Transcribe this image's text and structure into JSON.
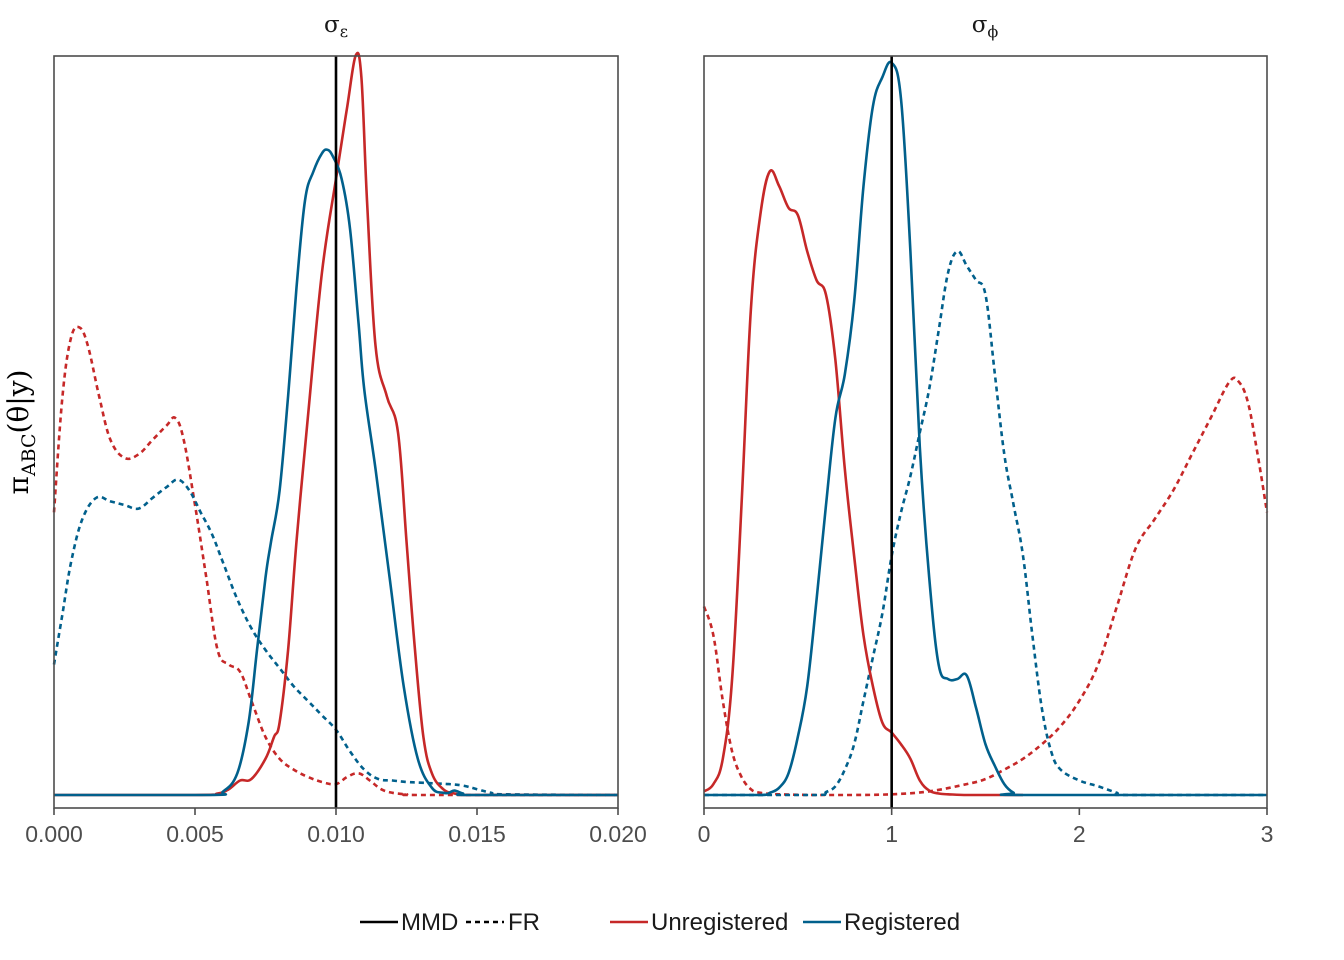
{
  "figure": {
    "ylabel_main": "π",
    "ylabel_sub": "ABC",
    "ylabel_rest": "(θ|y)"
  },
  "legend": {
    "line_types": [
      {
        "label": "MMD",
        "dash": "solid"
      },
      {
        "label": "FR",
        "dash": "dashed"
      }
    ],
    "colors": [
      {
        "label": "Unregistered",
        "color": "#c62828"
      },
      {
        "label": "Registered",
        "color": "#01608c"
      }
    ]
  },
  "colors": {
    "unregistered": "#c62828",
    "registered": "#01608c",
    "true_value": "#000000",
    "frame": "#4d4d4d"
  },
  "chart_data": [
    {
      "type": "line",
      "title_symbol": "σ",
      "title_subscript": "ε",
      "xlabel": "",
      "ylabel": "π_ABC(θ|y)",
      "xlim": [
        0,
        0.02
      ],
      "ylim": [
        0,
        1.02
      ],
      "xticks": [
        0,
        0.005,
        0.01,
        0.015,
        0.02
      ],
      "xtick_labels": [
        "0.000",
        "0.005",
        "0.010",
        "0.015",
        "0.020"
      ],
      "true_value": 0.01,
      "grid": false,
      "series": [
        {
          "name": "Unregistered MMD",
          "color_key": "unregistered",
          "dash": "solid",
          "x": [
            0,
            0.005,
            0.0058,
            0.0062,
            0.0066,
            0.007,
            0.0075,
            0.0078,
            0.008,
            0.0083,
            0.0086,
            0.009,
            0.0095,
            0.01,
            0.0104,
            0.0107,
            0.0109,
            0.0111,
            0.0114,
            0.0118,
            0.0122,
            0.0125,
            0.0128,
            0.0131,
            0.0134,
            0.0138,
            0.0142,
            0.0146,
            0.015,
            0.02
          ],
          "y": [
            0,
            0,
            0.002,
            0.008,
            0.02,
            0.022,
            0.05,
            0.08,
            0.1,
            0.2,
            0.35,
            0.52,
            0.72,
            0.85,
            0.95,
            1.02,
            0.99,
            0.82,
            0.62,
            0.55,
            0.5,
            0.35,
            0.2,
            0.08,
            0.03,
            0.008,
            0.002,
            0,
            0,
            0
          ]
        },
        {
          "name": "Registered MMD",
          "color_key": "registered",
          "dash": "solid",
          "x": [
            0,
            0.0055,
            0.006,
            0.0065,
            0.0069,
            0.0072,
            0.0075,
            0.0077,
            0.008,
            0.0083,
            0.0086,
            0.0089,
            0.0092,
            0.0095,
            0.0097,
            0.0099,
            0.0102,
            0.0105,
            0.0108,
            0.011,
            0.0114,
            0.0119,
            0.0124,
            0.0129,
            0.0134,
            0.0138,
            0.014,
            0.0142,
            0.0145,
            0.0148,
            0.02
          ],
          "y": [
            0,
            0,
            0.005,
            0.03,
            0.1,
            0.2,
            0.3,
            0.35,
            0.42,
            0.55,
            0.7,
            0.82,
            0.86,
            0.885,
            0.89,
            0.88,
            0.85,
            0.78,
            0.65,
            0.56,
            0.45,
            0.3,
            0.15,
            0.05,
            0.01,
            0.003,
            0.003,
            0.006,
            0.002,
            0,
            0
          ]
        },
        {
          "name": "Unregistered FR",
          "color_key": "unregistered",
          "dash": "dashed",
          "x": [
            0,
            0.0003,
            0.0006,
            0.0009,
            0.0012,
            0.0016,
            0.002,
            0.0025,
            0.003,
            0.0035,
            0.004,
            0.0043,
            0.0046,
            0.005,
            0.0054,
            0.0058,
            0.0062,
            0.0066,
            0.007,
            0.0075,
            0.008,
            0.0085,
            0.009,
            0.0095,
            0.01,
            0.0104,
            0.0108,
            0.0112,
            0.0116,
            0.012,
            0.0125,
            0.013,
            0.02
          ],
          "y": [
            0.39,
            0.55,
            0.63,
            0.645,
            0.62,
            0.55,
            0.49,
            0.465,
            0.47,
            0.49,
            0.51,
            0.52,
            0.49,
            0.4,
            0.3,
            0.2,
            0.18,
            0.17,
            0.13,
            0.08,
            0.05,
            0.035,
            0.025,
            0.018,
            0.015,
            0.025,
            0.03,
            0.02,
            0.008,
            0.003,
            0.001,
            0,
            0
          ]
        },
        {
          "name": "Registered FR",
          "color_key": "registered",
          "dash": "dashed",
          "x": [
            0,
            0.0003,
            0.0006,
            0.001,
            0.0015,
            0.002,
            0.0025,
            0.003,
            0.0035,
            0.004,
            0.0044,
            0.0048,
            0.0052,
            0.0056,
            0.006,
            0.0065,
            0.007,
            0.0075,
            0.008,
            0.0085,
            0.009,
            0.0095,
            0.01,
            0.0105,
            0.011,
            0.0115,
            0.012,
            0.0125,
            0.013,
            0.0135,
            0.014,
            0.0145,
            0.015,
            0.0155,
            0.016,
            0.02
          ],
          "y": [
            0.18,
            0.25,
            0.32,
            0.38,
            0.41,
            0.405,
            0.4,
            0.395,
            0.41,
            0.425,
            0.435,
            0.42,
            0.39,
            0.36,
            0.32,
            0.27,
            0.23,
            0.2,
            0.175,
            0.15,
            0.13,
            0.11,
            0.09,
            0.06,
            0.035,
            0.022,
            0.02,
            0.018,
            0.017,
            0.016,
            0.015,
            0.013,
            0.008,
            0.003,
            0.001,
            0
          ]
        }
      ]
    },
    {
      "type": "line",
      "title_symbol": "σ",
      "title_subscript": "ϕ",
      "xlabel": "",
      "ylabel": "",
      "xlim": [
        0,
        3
      ],
      "ylim": [
        0,
        1.02
      ],
      "xticks": [
        0,
        1,
        2,
        3
      ],
      "xtick_labels": [
        "0",
        "1",
        "2",
        "3"
      ],
      "true_value": 1,
      "grid": false,
      "series": [
        {
          "name": "Unregistered MMD",
          "color_key": "unregistered",
          "dash": "solid",
          "x": [
            0,
            0.05,
            0.1,
            0.15,
            0.2,
            0.25,
            0.3,
            0.35,
            0.4,
            0.45,
            0.5,
            0.55,
            0.6,
            0.65,
            0.7,
            0.75,
            0.8,
            0.85,
            0.9,
            0.95,
            1,
            1.05,
            1.1,
            1.15,
            1.2,
            1.25,
            1.3,
            1.4,
            1.5,
            1.7
          ],
          "y": [
            0.005,
            0.015,
            0.05,
            0.16,
            0.4,
            0.67,
            0.8,
            0.86,
            0.84,
            0.81,
            0.8,
            0.75,
            0.71,
            0.69,
            0.6,
            0.45,
            0.33,
            0.22,
            0.15,
            0.1,
            0.086,
            0.07,
            0.05,
            0.02,
            0.006,
            0.002,
            0.001,
            0,
            0,
            0
          ]
        },
        {
          "name": "Registered MMD",
          "color_key": "registered",
          "dash": "solid",
          "x": [
            0,
            0.3,
            0.35,
            0.4,
            0.45,
            0.5,
            0.55,
            0.6,
            0.65,
            0.7,
            0.75,
            0.8,
            0.85,
            0.9,
            0.95,
            1,
            1.05,
            1.1,
            1.15,
            1.2,
            1.25,
            1.3,
            1.35,
            1.4,
            1.45,
            1.5,
            1.55,
            1.6,
            1.65,
            1.7,
            3
          ],
          "y": [
            0,
            0,
            0.003,
            0.01,
            0.03,
            0.08,
            0.15,
            0.27,
            0.4,
            0.52,
            0.58,
            0.68,
            0.84,
            0.95,
            0.99,
            1.01,
            0.96,
            0.75,
            0.48,
            0.3,
            0.18,
            0.16,
            0.16,
            0.165,
            0.12,
            0.07,
            0.04,
            0.015,
            0.003,
            0,
            0
          ]
        },
        {
          "name": "Unregistered FR",
          "color_key": "unregistered",
          "dash": "dashed",
          "x": [
            0,
            0.05,
            0.1,
            0.15,
            0.2,
            0.25,
            0.3,
            0.4,
            0.6,
            0.8,
            1,
            1.2,
            1.4,
            1.5,
            1.6,
            1.7,
            1.8,
            1.9,
            2,
            2.1,
            2.2,
            2.3,
            2.4,
            2.5,
            2.6,
            2.7,
            2.8,
            2.85,
            2.9,
            2.95,
            3
          ],
          "y": [
            0.26,
            0.22,
            0.13,
            0.06,
            0.025,
            0.008,
            0.003,
            0.001,
            0,
            0,
            0.001,
            0.005,
            0.015,
            0.022,
            0.035,
            0.05,
            0.07,
            0.095,
            0.13,
            0.18,
            0.26,
            0.34,
            0.38,
            0.42,
            0.47,
            0.52,
            0.57,
            0.57,
            0.54,
            0.47,
            0.39
          ]
        },
        {
          "name": "Registered FR",
          "color_key": "registered",
          "dash": "dashed",
          "x": [
            0,
            0.6,
            0.65,
            0.7,
            0.75,
            0.8,
            0.85,
            0.9,
            0.95,
            1,
            1.05,
            1.1,
            1.15,
            1.2,
            1.25,
            1.3,
            1.35,
            1.4,
            1.45,
            1.5,
            1.55,
            1.6,
            1.65,
            1.7,
            1.75,
            1.8,
            1.85,
            1.9,
            2,
            2.1,
            2.2,
            2.25,
            3
          ],
          "y": [
            0,
            0,
            0.004,
            0.012,
            0.035,
            0.07,
            0.13,
            0.19,
            0.25,
            0.33,
            0.39,
            0.44,
            0.5,
            0.56,
            0.64,
            0.72,
            0.75,
            0.73,
            0.71,
            0.69,
            0.58,
            0.47,
            0.4,
            0.33,
            0.22,
            0.12,
            0.06,
            0.035,
            0.02,
            0.012,
            0.003,
            0,
            0
          ]
        }
      ]
    }
  ]
}
